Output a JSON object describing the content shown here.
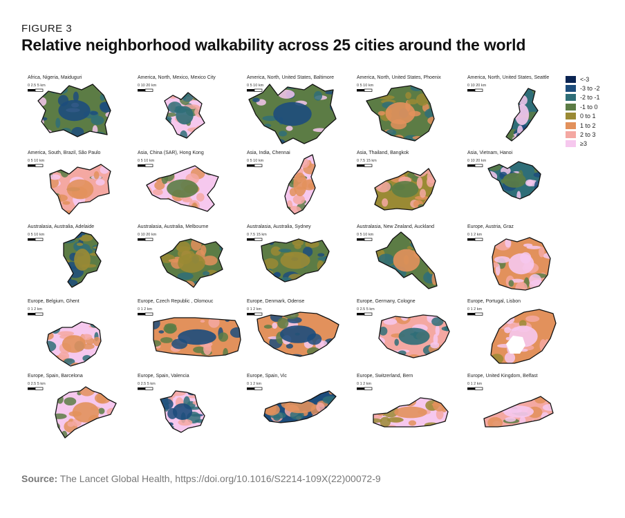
{
  "figure": {
    "label": "FIGURE 3",
    "title": "Relative neighborhood walkability across 25 cities around the world"
  },
  "source": {
    "prefix": "Source:",
    "text": "The Lancet Global Health, https://doi.org/10.1016/S2214-109X(22)00072-9"
  },
  "legend": [
    {
      "label": "<-3",
      "color": "#0b2452"
    },
    {
      "label": "-3 to -2",
      "color": "#1d4d7c"
    },
    {
      "label": "-2 to -1",
      "color": "#2f6e78"
    },
    {
      "label": "-1 to 0",
      "color": "#5c7c45"
    },
    {
      "label": "0 to 1",
      "color": "#9a8a34"
    },
    {
      "label": "1 to 2",
      "color": "#e2915c"
    },
    {
      "label": "2 to 3",
      "color": "#f4a8a2"
    },
    {
      "label": "≥3",
      "color": "#f6c8ee"
    }
  ],
  "cities": [
    {
      "name": "Africa, Nigeria, Maiduguri",
      "scale": "0    2.5     5 km",
      "palette": [
        "#5c7c45",
        "#2f6e78",
        "#1d4d7c",
        "#f6c8ee"
      ]
    },
    {
      "name": "America, North, Mexico, Mexico City",
      "scale": "0   10   20 km",
      "palette": [
        "#f6c8ee",
        "#f4a8a2",
        "#2f6e78",
        "#5c7c45"
      ]
    },
    {
      "name": "America, North, United States, Baltimore",
      "scale": "0     5    10 km",
      "palette": [
        "#5c7c45",
        "#2f6e78",
        "#1d4d7c",
        "#f6c8ee"
      ]
    },
    {
      "name": "America, North, United States, Phoenix",
      "scale": "0     5    10 km",
      "palette": [
        "#5c7c45",
        "#9a8a34",
        "#e2915c",
        "#2f6e78"
      ]
    },
    {
      "name": "America, North, United States, Seattle",
      "scale": "0    10   20 km",
      "palette": [
        "#2f6e78",
        "#5c7c45",
        "#f6c8ee",
        "#1d4d7c"
      ]
    },
    {
      "name": "America, South, Brazil, São Paulo",
      "scale": "0    5    10 km",
      "palette": [
        "#f4a8a2",
        "#f6c8ee",
        "#e2915c",
        "#5c7c45"
      ]
    },
    {
      "name": "Asia, China (SAR), Hong Kong",
      "scale": "0     5     10 km",
      "palette": [
        "#f6c8ee",
        "#f4a8a2",
        "#5c7c45",
        "#e2915c"
      ]
    },
    {
      "name": "Asia, India, Chennai",
      "scale": "0    5    10 km",
      "palette": [
        "#f6c8ee",
        "#f4a8a2",
        "#e2915c",
        "#5c7c45"
      ]
    },
    {
      "name": "Asia, Thailand, Bangkok",
      "scale": "0    7.5    15 km",
      "palette": [
        "#9a8a34",
        "#e2915c",
        "#5c7c45",
        "#f4a8a2"
      ]
    },
    {
      "name": "Asia, Vietnam, Hanoi",
      "scale": "0    10   20 km",
      "palette": [
        "#2f6e78",
        "#f6c8ee",
        "#5c7c45",
        "#1d4d7c"
      ]
    },
    {
      "name": "Australasia, Australia, Adelaide",
      "scale": "0     5     10 km",
      "palette": [
        "#5c7c45",
        "#2f6e78",
        "#9a8a34",
        "#1d4d7c"
      ]
    },
    {
      "name": "Australasia, Australia, Melbourne",
      "scale": "0    10    20 km",
      "palette": [
        "#5c7c45",
        "#2f6e78",
        "#9a8a34",
        "#e2915c"
      ]
    },
    {
      "name": "Australasia, Australia, Sydney",
      "scale": "0   7.5   15 km",
      "palette": [
        "#5c7c45",
        "#2f6e78",
        "#9a8a34",
        "#1d4d7c"
      ]
    },
    {
      "name": "Australasia, New Zealand, Auckland",
      "scale": "0     5     10 km",
      "palette": [
        "#5c7c45",
        "#9a8a34",
        "#e2915c",
        "#2f6e78"
      ]
    },
    {
      "name": "Europe, Austria, Graz",
      "scale": "0   1   2 km",
      "palette": [
        "#e2915c",
        "#f4a8a2",
        "#f6c8ee",
        "#5c7c45"
      ]
    },
    {
      "name": "Europe, Belgium, Ghent",
      "scale": "0   1   2 km",
      "palette": [
        "#f6c8ee",
        "#f4a8a2",
        "#e2915c",
        "#2f6e78"
      ]
    },
    {
      "name": "Europe, Czech Republic , Olomouc",
      "scale": "0      1      2 km",
      "palette": [
        "#e2915c",
        "#f4a8a2",
        "#1d4d7c",
        "#5c7c45"
      ]
    },
    {
      "name": "Europe, Denmark, Odense",
      "scale": "0    1    2 km",
      "palette": [
        "#e2915c",
        "#f6c8ee",
        "#1d4d7c",
        "#5c7c45"
      ]
    },
    {
      "name": "Europe, Germany, Cologne",
      "scale": "0  2.5  5 km",
      "palette": [
        "#f4a8a2",
        "#e2915c",
        "#2f6e78",
        "#f6c8ee"
      ]
    },
    {
      "name": "Europe, Portugal, Lisbon",
      "scale": "0   1   2 km",
      "palette": [
        "#e2915c",
        "#f4a8a2",
        "#f6c8ee",
        "#9a8a34"
      ]
    },
    {
      "name": "Europe, Spain, Barcelona",
      "scale": "0  2.5  5 km",
      "palette": [
        "#f6c8ee",
        "#f4a8a2",
        "#e2915c",
        "#5c7c45"
      ]
    },
    {
      "name": "Europe, Spain, Valencia",
      "scale": "0    2.5    5 km",
      "palette": [
        "#f6c8ee",
        "#f4a8a2",
        "#1d4d7c",
        "#2f6e78"
      ]
    },
    {
      "name": "Europe, Spain, Vic",
      "scale": "0    1    2 km",
      "palette": [
        "#1d4d7c",
        "#f4a8a2",
        "#e2915c",
        "#2f6e78"
      ]
    },
    {
      "name": "Europe, Switzerland, Bern",
      "scale": "0     1     2 km",
      "palette": [
        "#f6c8ee",
        "#f4a8a2",
        "#e2915c",
        "#9a8a34"
      ]
    },
    {
      "name": "Europe, United Kingdom, Belfast",
      "scale": "0  1  2 km",
      "palette": [
        "#f4a8a2",
        "#e2915c",
        "#f6c8ee",
        "#5c7c45"
      ]
    }
  ]
}
